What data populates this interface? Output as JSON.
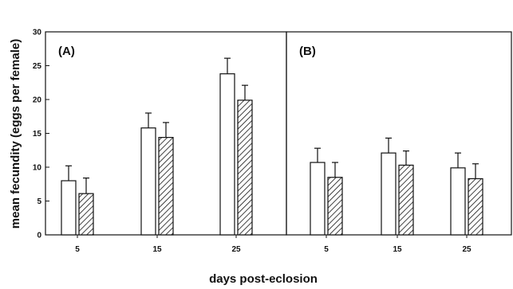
{
  "chart_data": [
    {
      "type": "bar",
      "panel_label": "(A)",
      "categories": [
        "5",
        "15",
        "25"
      ],
      "series": [
        {
          "pattern": "open",
          "values": [
            8.0,
            15.8,
            23.8
          ],
          "errors": [
            2.2,
            2.2,
            2.3
          ]
        },
        {
          "pattern": "hatched",
          "values": [
            6.1,
            14.4,
            19.9
          ],
          "errors": [
            2.3,
            2.2,
            2.2
          ]
        }
      ],
      "ylim": [
        0,
        30
      ],
      "yticks": [
        "0",
        "5",
        "10",
        "15",
        "20",
        "25",
        "30"
      ],
      "ylabel": "mean fecundity (eggs per female)",
      "xlabel": "days post-eclosion"
    },
    {
      "type": "bar",
      "panel_label": "(B)",
      "categories": [
        "5",
        "15",
        "25"
      ],
      "series": [
        {
          "pattern": "open",
          "values": [
            10.7,
            12.1,
            9.9
          ],
          "errors": [
            2.1,
            2.2,
            2.2
          ]
        },
        {
          "pattern": "hatched",
          "values": [
            8.5,
            10.3,
            8.3
          ],
          "errors": [
            2.2,
            2.1,
            2.2
          ]
        }
      ],
      "ylim": [
        0,
        30
      ]
    }
  ],
  "colors": {
    "ink": "#111111",
    "open_fill": "#ffffff",
    "background": "#ffffff"
  }
}
